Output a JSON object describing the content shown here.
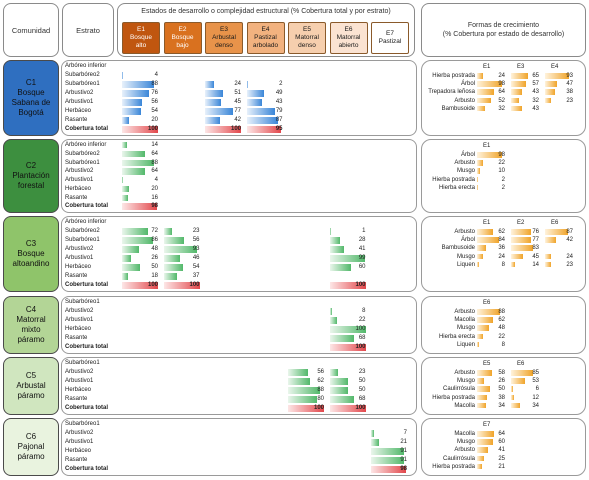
{
  "header": {
    "comunidad": "Comunidad",
    "estrato": "Estrato",
    "stages_title": "Estados de desarrollo o complejidad estructural (% Cobertura total  y por estrato)",
    "growth_title": "Formas de crecimiento\n(% Cobertura por estado de desarrollo)"
  },
  "stages": [
    {
      "code": "E1",
      "name": "Bosque alto",
      "color": "#c0560f",
      "text": "#ffffff"
    },
    {
      "code": "E2",
      "name": "Bosque bajo",
      "color": "#d9711f",
      "text": "#ffffff"
    },
    {
      "code": "E3",
      "name": "Arbustal denso",
      "color": "#e8934a",
      "text": "#1a1a1a"
    },
    {
      "code": "E4",
      "name": "Pastizal arbolado",
      "color": "#f2b27f",
      "text": "#1a1a1a"
    },
    {
      "code": "E5",
      "name": "Matorral denso",
      "color": "#f6cfae",
      "text": "#1a1a1a"
    },
    {
      "code": "E6",
      "name": "Matorral abierto",
      "color": "#fbe3d2",
      "text": "#1a1a1a"
    },
    {
      "code": "E7",
      "name": "Pastizal",
      "color": "#ffffff",
      "text": "#1a1a1a"
    }
  ],
  "colors": {
    "C1": "#2f6fc0",
    "C2": "#3d8f3f",
    "C3": "#8fc46a",
    "C4": "#b3d596",
    "C5": "#d0e6bf",
    "C6": "#e9f3df"
  },
  "chart_data": {
    "type": "bar",
    "communities": [
      {
        "code": "C1",
        "name": "Bosque Sabana de Bogotá",
        "bar_color": "blue",
        "color_key": "C1",
        "strata": [
          "Arbóreo inferior",
          "Subarbóreo2",
          "Subarbóreo1",
          "Arbustivo2",
          "Arbustivo1",
          "Herbáceo",
          "Rasante",
          "Cobertura total"
        ],
        "values": {
          "E1": [
            null,
            4,
            88,
            76,
            56,
            54,
            20,
            100
          ],
          "E3": [
            null,
            null,
            24,
            51,
            45,
            77,
            42,
            100
          ],
          "E4": [
            null,
            null,
            2,
            49,
            43,
            79,
            87,
            95
          ]
        },
        "growth": {
          "stages": [
            "E1",
            "E3",
            "E4"
          ],
          "forms": [
            "Hierba postrada",
            "Árbol",
            "Trepadora leñosa",
            "Arbusto",
            "Bambusoide"
          ],
          "values": {
            "E1": [
              24,
              98,
              64,
              52,
              32
            ],
            "E3": [
              65,
              57,
              43,
              32,
              43
            ],
            "E4": [
              93,
              47,
              38,
              23,
              null
            ]
          }
        }
      },
      {
        "code": "C2",
        "name": "Plantación forestal",
        "bar_color": "green",
        "color_key": "C2",
        "strata": [
          "Arbóreo inferior",
          "Subarbóreo2",
          "Subarbóreo1",
          "Arbustivo2",
          "Arbustivo1",
          "Herbáceo",
          "Rasante",
          "Cobertura total"
        ],
        "values": {
          "E1": [
            14,
            64,
            88,
            64,
            4,
            20,
            16,
            98
          ]
        },
        "growth": {
          "stages": [
            "E1"
          ],
          "forms": [
            "Árbol",
            "Arbusto",
            "Musgo",
            "Hierba postrada",
            "Hierba erecta"
          ],
          "values": {
            "E1": [
              98,
              22,
              10,
              2,
              2
            ]
          }
        }
      },
      {
        "code": "C3",
        "name": "Bosque altoandino",
        "bar_color": "green",
        "color_key": "C3",
        "strata": [
          "Arbóreo inferior",
          "Subarbóreo2",
          "Subarbóreo1",
          "Arbustivo2",
          "Arbustivo1",
          "Herbáceo",
          "Rasante",
          "Cobertura total"
        ],
        "values": {
          "E1": [
            null,
            72,
            86,
            48,
            26,
            50,
            18,
            100
          ],
          "E2": [
            null,
            23,
            56,
            93,
            46,
            54,
            37,
            100
          ],
          "E6": [
            null,
            1,
            28,
            41,
            99,
            60,
            null,
            100
          ]
        },
        "growth": {
          "stages": [
            "E1",
            "E2",
            "E6"
          ],
          "forms": [
            "Arbusto",
            "Árbol",
            "Bambusoide",
            "Musgo",
            "Liquen"
          ],
          "values": {
            "E1": [
              62,
              84,
              36,
              24,
              8
            ],
            "E2": [
              76,
              77,
              83,
              45,
              14
            ],
            "E6": [
              87,
              42,
              null,
              24,
              23
            ]
          }
        }
      },
      {
        "code": "C4",
        "name": "Matorral mixto páramo",
        "bar_color": "green",
        "color_key": "C4",
        "strata": [
          "Subarbóreo1",
          "Arbustivo2",
          "Arbustivo1",
          "Herbáceo",
          "Rasante",
          "Cobertura total"
        ],
        "values": {
          "E6": [
            null,
            8,
            22,
            100,
            68,
            100
          ]
        },
        "growth": {
          "stages": [
            "E6"
          ],
          "forms": [
            "Arbusto",
            "Macolla",
            "Musgo",
            "Hierba erecta",
            "Liquen"
          ],
          "values": {
            "E6": [
              88,
              62,
              48,
              22,
              8
            ]
          }
        }
      },
      {
        "code": "C5",
        "name": "Arbustal páramo",
        "bar_color": "green",
        "color_key": "C5",
        "strata": [
          "Subarbóreo1",
          "Arbustivo2",
          "Arbustivo1",
          "Herbáceo",
          "Rasante",
          "Cobertura total"
        ],
        "values": {
          "E5": [
            null,
            56,
            62,
            88,
            80,
            100
          ],
          "E6": [
            null,
            23,
            50,
            50,
            68,
            100
          ]
        },
        "growth": {
          "stages": [
            "E5",
            "E6"
          ],
          "forms": [
            "Arbusto",
            "Musgo",
            "Caulirrósula",
            "Hierba postrada",
            "Macolla"
          ],
          "values": {
            "E5": [
              58,
              26,
              50,
              38,
              34
            ],
            "E6": [
              85,
              53,
              6,
              12,
              34
            ]
          }
        }
      },
      {
        "code": "C6",
        "name": "Pajonal páramo",
        "bar_color": "green",
        "color_key": "C6",
        "strata": [
          "Subarbóreo1",
          "Arbustivo2",
          "Arbustivo1",
          "Herbáceo",
          "Rasante",
          "Cobertura total"
        ],
        "values": {
          "E7": [
            null,
            7,
            21,
            91,
            91,
            98
          ]
        },
        "growth": {
          "stages": [
            "E7"
          ],
          "forms": [
            "Macolla",
            "Musgo",
            "Arbusto",
            "Caulirrósula",
            "Hierba postrada"
          ],
          "values": {
            "E7": [
              64,
              60,
              41,
              25,
              21
            ]
          }
        }
      }
    ]
  }
}
